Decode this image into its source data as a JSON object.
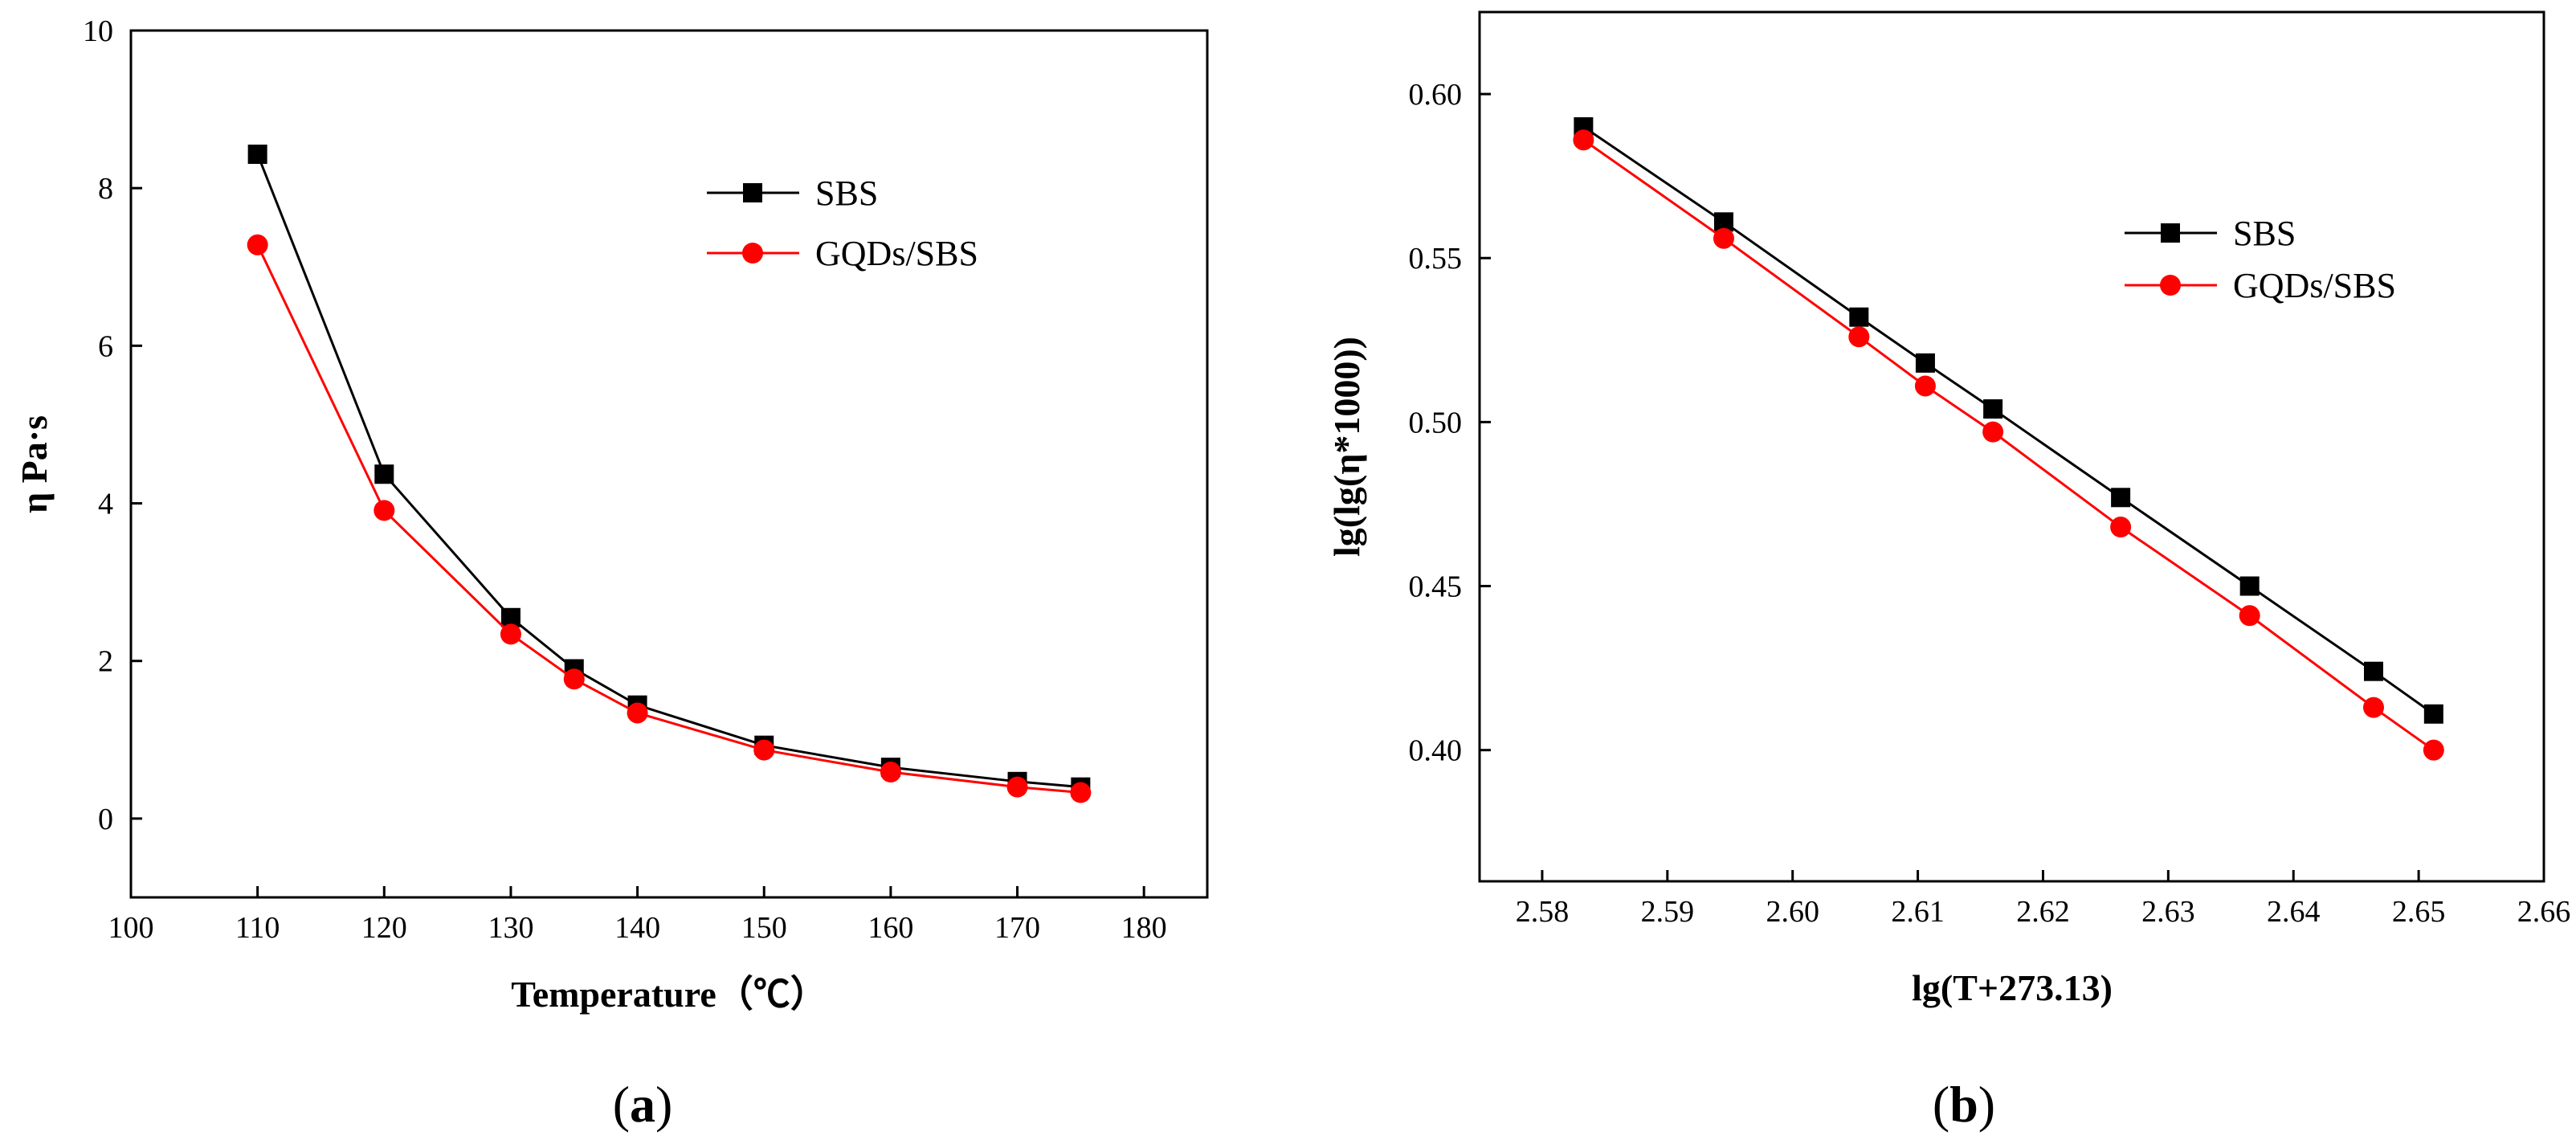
{
  "colors": {
    "sbs": "#000000",
    "gqds": "#ff0000"
  },
  "chart_data": [
    {
      "type": "line",
      "panel": "(a)",
      "caption_open": "(",
      "caption_letter": "a",
      "caption_close": ")",
      "xlabel": "Temperature（℃）",
      "ylabel": "η Pa·s",
      "xlim": [
        100,
        185
      ],
      "ylim": [
        -1,
        10
      ],
      "xticks": [
        100,
        110,
        120,
        130,
        140,
        150,
        160,
        170,
        180
      ],
      "yticks": [
        0,
        2,
        4,
        6,
        8,
        10
      ],
      "legend_position": "top-right",
      "series": [
        {
          "name": "SBS",
          "marker": "square",
          "x": [
            110,
            120,
            130,
            135,
            140,
            150,
            160,
            170,
            175
          ],
          "y": [
            8.43,
            4.37,
            2.55,
            1.9,
            1.44,
            0.93,
            0.65,
            0.47,
            0.4
          ]
        },
        {
          "name": "GQDs/SBS",
          "marker": "circle",
          "x": [
            110,
            120,
            130,
            135,
            140,
            150,
            160,
            170,
            175
          ],
          "y": [
            7.28,
            3.91,
            2.34,
            1.77,
            1.34,
            0.87,
            0.59,
            0.4,
            0.33
          ]
        }
      ]
    },
    {
      "type": "line",
      "panel": "(b)",
      "caption_open": "(",
      "caption_letter": "b",
      "caption_close": ")",
      "xlabel": "lg(T+273.13)",
      "ylabel": "lg(lg(η*1000))",
      "xlim": [
        2.575,
        2.66
      ],
      "ylim": [
        0.36,
        0.625
      ],
      "xticks": [
        "2.58",
        "2.59",
        "2.60",
        "2.61",
        "2.62",
        "2.63",
        "2.64",
        "2.65",
        "2.66"
      ],
      "yticks": [
        "0.40",
        "0.45",
        "0.50",
        "0.55",
        "0.60"
      ],
      "legend_position": "top-right",
      "series": [
        {
          "name": "SBS",
          "marker": "square",
          "x": [
            2.5833,
            2.5945,
            2.6053,
            2.6106,
            2.616,
            2.6262,
            2.6365,
            2.6464,
            2.6512
          ],
          "y": [
            0.59,
            0.561,
            0.532,
            0.518,
            0.504,
            0.477,
            0.45,
            0.424,
            0.411
          ]
        },
        {
          "name": "GQDs/SBS",
          "marker": "circle",
          "x": [
            2.5833,
            2.5945,
            2.6053,
            2.6106,
            2.616,
            2.6262,
            2.6365,
            2.6464,
            2.6512
          ],
          "y": [
            0.586,
            0.556,
            0.526,
            0.511,
            0.497,
            0.468,
            0.441,
            0.413,
            0.4
          ]
        }
      ]
    }
  ]
}
